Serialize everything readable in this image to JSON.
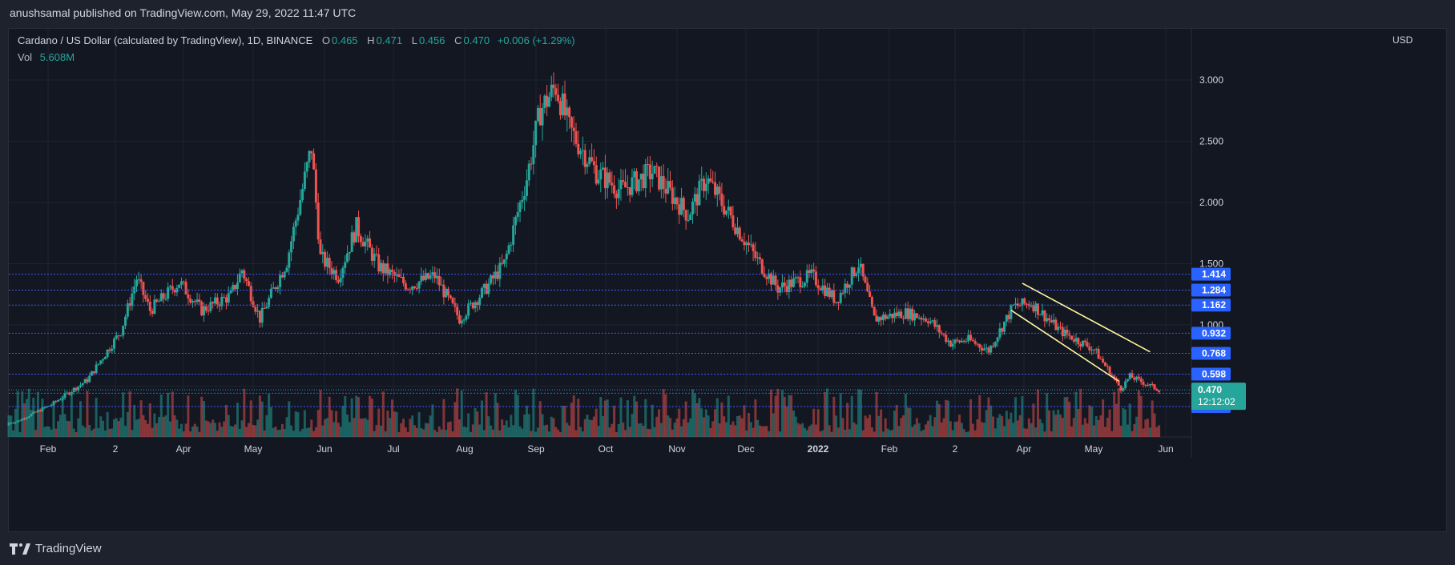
{
  "header": {
    "publish_text": "anushsamal published on TradingView.com, May 29, 2022 11:47 UTC"
  },
  "legend": {
    "symbol": "Cardano / US Dollar (calculated by TradingView), 1D, BINANCE",
    "o_label": "O",
    "o_value": "0.465",
    "h_label": "H",
    "h_value": "0.471",
    "l_label": "L",
    "l_value": "0.456",
    "c_label": "C",
    "c_value": "0.470",
    "change": "+0.006 (+1.29%)",
    "vol_label": "Vol",
    "vol_value": "5.608M"
  },
  "footer": {
    "brand": "TradingView"
  },
  "colors": {
    "up": "#26a69a",
    "down": "#ef5350",
    "level_line": "#3d5afe",
    "channel": "#fff59d",
    "last_price": "#26a69a"
  },
  "chart_data": {
    "type": "candlestick",
    "currency": "USD",
    "y_ticks": [
      1.0,
      1.5,
      2.0,
      2.5,
      3.0
    ],
    "y_tick_labels": [
      "1.000",
      "1.500",
      "2.000",
      "2.500",
      "3.000"
    ],
    "ylim": [
      0.3,
      3.4
    ],
    "x_labels": [
      "Feb",
      "2",
      "Apr",
      "May",
      "Jun",
      "Jul",
      "Aug",
      "Sep",
      "Oct",
      "Nov",
      "Dec",
      "2022",
      "Feb",
      "2",
      "Apr",
      "May",
      "Jun"
    ],
    "level_labels": [
      "1.414",
      "1.284",
      "1.162",
      "0.932",
      "0.768",
      "0.598",
      "0.442",
      "0.333"
    ],
    "levels": [
      1.414,
      1.284,
      1.162,
      0.932,
      0.768,
      0.598,
      0.442,
      0.333
    ],
    "last_price": "0.470",
    "countdown": "12:12:02",
    "anchors": [
      [
        "2021-01-01",
        0.18
      ],
      [
        "2021-01-20",
        0.35
      ],
      [
        "2021-02-05",
        0.55
      ],
      [
        "2021-02-20",
        0.95
      ],
      [
        "2021-02-27",
        1.38
      ],
      [
        "2021-03-05",
        1.12
      ],
      [
        "2021-03-18",
        1.35
      ],
      [
        "2021-03-28",
        1.12
      ],
      [
        "2021-04-10",
        1.24
      ],
      [
        "2021-04-15",
        1.45
      ],
      [
        "2021-04-23",
        1.05
      ],
      [
        "2021-05-05",
        1.52
      ],
      [
        "2021-05-16",
        2.45
      ],
      [
        "2021-05-20",
        1.55
      ],
      [
        "2021-05-28",
        1.4
      ],
      [
        "2021-06-05",
        1.8
      ],
      [
        "2021-06-15",
        1.48
      ],
      [
        "2021-06-28",
        1.32
      ],
      [
        "2021-07-10",
        1.4
      ],
      [
        "2021-07-21",
        1.05
      ],
      [
        "2021-08-01",
        1.28
      ],
      [
        "2021-08-10",
        1.5
      ],
      [
        "2021-08-20",
        2.2
      ],
      [
        "2021-08-26",
        2.75
      ],
      [
        "2021-09-02",
        2.95
      ],
      [
        "2021-09-08",
        2.6
      ],
      [
        "2021-09-20",
        2.25
      ],
      [
        "2021-10-01",
        2.1
      ],
      [
        "2021-10-15",
        2.25
      ],
      [
        "2021-10-31",
        1.9
      ],
      [
        "2021-11-08",
        2.2
      ],
      [
        "2021-11-20",
        1.85
      ],
      [
        "2021-11-30",
        1.55
      ],
      [
        "2021-12-10",
        1.3
      ],
      [
        "2021-12-25",
        1.4
      ],
      [
        "2022-01-05",
        1.2
      ],
      [
        "2022-01-15",
        1.5
      ],
      [
        "2022-01-22",
        1.05
      ],
      [
        "2022-02-05",
        1.1
      ],
      [
        "2022-02-15",
        1.05
      ],
      [
        "2022-02-25",
        0.85
      ],
      [
        "2022-03-05",
        0.88
      ],
      [
        "2022-03-14",
        0.79
      ],
      [
        "2022-03-25",
        1.15
      ],
      [
        "2022-04-02",
        1.18
      ],
      [
        "2022-04-15",
        0.95
      ],
      [
        "2022-04-30",
        0.8
      ],
      [
        "2022-05-12",
        0.48
      ],
      [
        "2022-05-16",
        0.58
      ],
      [
        "2022-05-29",
        0.47
      ]
    ],
    "channel_upper": [
      [
        "2022-03-29",
        1.34
      ],
      [
        "2022-05-25",
        0.78
      ]
    ],
    "channel_lower": [
      [
        "2022-03-24",
        1.12
      ],
      [
        "2022-05-11",
        0.54
      ]
    ]
  }
}
